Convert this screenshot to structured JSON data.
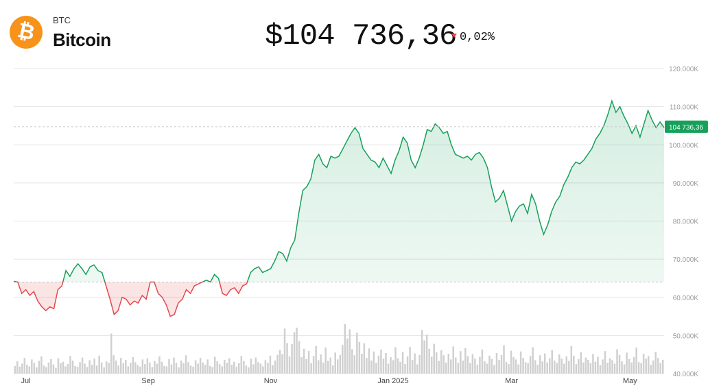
{
  "asset": {
    "ticker": "BTC",
    "name": "Bitcoin",
    "logo_symbol": "₿",
    "logo_color": "#f7931a",
    "logo_icon": "bitcoin-icon"
  },
  "quote": {
    "price": "$104 736,36",
    "change": "0,02%",
    "direction": "down",
    "down_color": "#e5484d"
  },
  "chart_data": {
    "type": "area",
    "title": "",
    "xlabel": "",
    "ylabel": "",
    "y_axis_side": "right",
    "ylim": [
      40000,
      120000
    ],
    "y_ticks": [
      {
        "value": 120000,
        "label": "120.000K"
      },
      {
        "value": 110000,
        "label": "110.000K"
      },
      {
        "value": 100000,
        "label": "100.000K"
      },
      {
        "value": 90000,
        "label": "90.000K"
      },
      {
        "value": 80000,
        "label": "80.000K"
      },
      {
        "value": 70000,
        "label": "70.000K"
      },
      {
        "value": 60000,
        "label": "60.000K"
      },
      {
        "value": 50000,
        "label": "50.000K"
      },
      {
        "value": 40000,
        "label": "40.000K"
      }
    ],
    "x_ticks": [
      {
        "x": 6,
        "label": "Jul"
      },
      {
        "x": 67,
        "label": "Sep"
      },
      {
        "x": 128,
        "label": "Nov"
      },
      {
        "x": 189,
        "label": "Jan 2025"
      },
      {
        "x": 248,
        "label": "Mar"
      },
      {
        "x": 307,
        "label": "May"
      }
    ],
    "baseline": 64000,
    "current": {
      "value": 104736.36,
      "label": "104 736,36"
    },
    "colors": {
      "up": "#16a05a",
      "down": "#e5484d",
      "grid": "#e4e4e4",
      "volume": "#d0d0d0",
      "badge": "#16a05a"
    },
    "price_series": [
      [
        0,
        64200
      ],
      [
        2,
        64000
      ],
      [
        4,
        61000
      ],
      [
        6,
        62000
      ],
      [
        8,
        60500
      ],
      [
        10,
        61500
      ],
      [
        12,
        59000
      ],
      [
        14,
        57500
      ],
      [
        16,
        56500
      ],
      [
        18,
        57500
      ],
      [
        20,
        57000
      ],
      [
        22,
        62000
      ],
      [
        24,
        63000
      ],
      [
        26,
        67000
      ],
      [
        28,
        65500
      ],
      [
        30,
        67500
      ],
      [
        32,
        68800
      ],
      [
        34,
        67500
      ],
      [
        36,
        66000
      ],
      [
        38,
        68000
      ],
      [
        40,
        68500
      ],
      [
        42,
        67000
      ],
      [
        44,
        66500
      ],
      [
        46,
        63000
      ],
      [
        48,
        59500
      ],
      [
        50,
        55500
      ],
      [
        52,
        56500
      ],
      [
        54,
        60000
      ],
      [
        56,
        59500
      ],
      [
        58,
        58000
      ],
      [
        60,
        59000
      ],
      [
        62,
        58500
      ],
      [
        64,
        60500
      ],
      [
        66,
        59500
      ],
      [
        68,
        64000
      ],
      [
        70,
        64000
      ],
      [
        72,
        61000
      ],
      [
        74,
        60000
      ],
      [
        76,
        58000
      ],
      [
        78,
        55000
      ],
      [
        80,
        55500
      ],
      [
        82,
        58500
      ],
      [
        84,
        59500
      ],
      [
        86,
        62000
      ],
      [
        88,
        61000
      ],
      [
        90,
        63000
      ],
      [
        92,
        63500
      ],
      [
        94,
        64000
      ],
      [
        96,
        64500
      ],
      [
        98,
        64000
      ],
      [
        100,
        66000
      ],
      [
        102,
        65000
      ],
      [
        104,
        61000
      ],
      [
        106,
        60500
      ],
      [
        108,
        62000
      ],
      [
        110,
        62500
      ],
      [
        112,
        61000
      ],
      [
        114,
        63000
      ],
      [
        116,
        63500
      ],
      [
        118,
        66500
      ],
      [
        120,
        67500
      ],
      [
        122,
        68000
      ],
      [
        124,
        66500
      ],
      [
        126,
        67000
      ],
      [
        128,
        67500
      ],
      [
        130,
        69500
      ],
      [
        132,
        72000
      ],
      [
        134,
        71500
      ],
      [
        136,
        69500
      ],
      [
        138,
        73000
      ],
      [
        140,
        75000
      ],
      [
        142,
        82000
      ],
      [
        144,
        88000
      ],
      [
        146,
        89000
      ],
      [
        148,
        91000
      ],
      [
        150,
        96000
      ],
      [
        152,
        97500
      ],
      [
        154,
        95000
      ],
      [
        156,
        94000
      ],
      [
        158,
        97000
      ],
      [
        160,
        96500
      ],
      [
        162,
        97000
      ],
      [
        164,
        99000
      ],
      [
        166,
        101000
      ],
      [
        168,
        103000
      ],
      [
        170,
        104500
      ],
      [
        172,
        103000
      ],
      [
        174,
        99000
      ],
      [
        176,
        97500
      ],
      [
        178,
        96000
      ],
      [
        180,
        95500
      ],
      [
        182,
        94000
      ],
      [
        184,
        96500
      ],
      [
        186,
        94500
      ],
      [
        188,
        92500
      ],
      [
        190,
        96000
      ],
      [
        192,
        98500
      ],
      [
        194,
        102000
      ],
      [
        196,
        100500
      ],
      [
        198,
        96000
      ],
      [
        200,
        94000
      ],
      [
        202,
        96500
      ],
      [
        204,
        100000
      ],
      [
        206,
        104000
      ],
      [
        208,
        103500
      ],
      [
        210,
        105500
      ],
      [
        212,
        104500
      ],
      [
        214,
        103000
      ],
      [
        216,
        103500
      ],
      [
        218,
        100000
      ],
      [
        220,
        97500
      ],
      [
        222,
        97000
      ],
      [
        224,
        96500
      ],
      [
        226,
        97000
      ],
      [
        228,
        96000
      ],
      [
        230,
        97500
      ],
      [
        232,
        98000
      ],
      [
        234,
        96500
      ],
      [
        236,
        94000
      ],
      [
        238,
        89000
      ],
      [
        240,
        85000
      ],
      [
        242,
        86000
      ],
      [
        244,
        88000
      ],
      [
        246,
        84000
      ],
      [
        248,
        80000
      ],
      [
        250,
        82500
      ],
      [
        252,
        84000
      ],
      [
        254,
        84500
      ],
      [
        256,
        82000
      ],
      [
        258,
        87000
      ],
      [
        260,
        84500
      ],
      [
        262,
        80000
      ],
      [
        264,
        76500
      ],
      [
        266,
        79000
      ],
      [
        268,
        82500
      ],
      [
        270,
        85000
      ],
      [
        272,
        86500
      ],
      [
        274,
        89500
      ],
      [
        276,
        91500
      ],
      [
        278,
        94000
      ],
      [
        280,
        95500
      ],
      [
        282,
        95000
      ],
      [
        284,
        96000
      ],
      [
        286,
        97500
      ],
      [
        288,
        99000
      ],
      [
        290,
        101500
      ],
      [
        292,
        103000
      ],
      [
        294,
        105000
      ],
      [
        296,
        108000
      ],
      [
        298,
        111500
      ],
      [
        300,
        108500
      ],
      [
        302,
        110000
      ],
      [
        304,
        107500
      ],
      [
        306,
        105500
      ],
      [
        308,
        103000
      ],
      [
        310,
        105000
      ],
      [
        312,
        102000
      ],
      [
        314,
        105500
      ],
      [
        316,
        109000
      ],
      [
        318,
        106500
      ],
      [
        320,
        104500
      ],
      [
        322,
        106000
      ],
      [
        324,
        104500
      ]
    ],
    "volume_series": [
      42000,
      43200,
      41800,
      42600,
      44100,
      42300,
      41900,
      43700,
      42800,
      41600,
      43300,
      44500,
      42100,
      41700,
      42900,
      43800,
      42400,
      41500,
      44000,
      42700,
      43100,
      41900,
      42500,
      44600,
      43400,
      42000,
      41800,
      43000,
      44200,
      42600,
      41700,
      43500,
      42300,
      43900,
      42100,
      44700,
      42900,
      41600,
      43200,
      42800,
      50500,
      44800,
      43400,
      42100,
      44100,
      42700,
      43600,
      41900,
      42800,
      44300,
      43000,
      42200,
      41800,
      43700,
      42500,
      44000,
      42900,
      41700,
      43300,
      42600,
      44500,
      43100,
      42000,
      41900,
      43800,
      42400,
      44200,
      42800,
      41600,
      43400,
      42700,
      44800,
      43000,
      42100,
      41800,
      43500,
      42600,
      44100,
      42900,
      42300,
      43700,
      42000,
      41700,
      44400,
      43200,
      42500,
      41900,
      43600,
      42800,
      44000,
      42300,
      43100,
      41800,
      42700,
      44600,
      43300,
      42100,
      41600,
      43900,
      42400,
      44200,
      43000,
      42600,
      41900,
      43500,
      42800,
      44700,
      42200,
      43400,
      44900,
      46200,
      45100,
      51800,
      48000,
      44500,
      47700,
      50900,
      52000,
      48500,
      44300,
      46500,
      43800,
      45900,
      42700,
      44600,
      47200,
      43500,
      45000,
      42900,
      46800,
      43300,
      44200,
      42100,
      45500,
      43700,
      44900,
      47500,
      53000,
      49200,
      51600,
      46400,
      44800,
      50700,
      48300,
      45200,
      47900,
      44100,
      46600,
      43400,
      45800,
      42800,
      44700,
      46300,
      43900,
      45400,
      42600,
      44300,
      43500,
      46900,
      44000,
      43100,
      45700,
      42500,
      44500,
      47000,
      43600,
      45300,
      42400,
      44900,
      51400,
      48700,
      50200,
      46500,
      44400,
      47800,
      45600,
      43300,
      46100,
      44800,
      42900,
      45200,
      43700,
      47100,
      44200,
      42800,
      45900,
      43400,
      46700,
      44600,
      42700,
      45100,
      43900,
      42300,
      44400,
      46300,
      43200,
      42600,
      44700,
      43800,
      42200,
      45400,
      43600,
      44900,
      47400,
      43100,
      42500,
      46000,
      44300,
      43700,
      42400,
      45800,
      44100,
      43000,
      42700,
      44600,
      46900,
      43500,
      42300,
      44800,
      43200,
      45300,
      42900,
      44000,
      46100,
      43400,
      42800,
      45000,
      43900,
      42600,
      44500,
      43300,
      47200,
      44700,
      42500,
      43800,
      45600,
      42900,
      44200,
      43600,
      42700,
      45100,
      43100,
      44400,
      42200,
      43700,
      45900,
      42800,
      44000,
      43500,
      42600,
      46400,
      44900,
      43200,
      42400,
      45500,
      43800,
      42900,
      44300,
      46800,
      43000,
      42700,
      45200,
      43900,
      44600,
      42300,
      43400,
      45700,
      44100,
      42800,
      43600
    ]
  }
}
